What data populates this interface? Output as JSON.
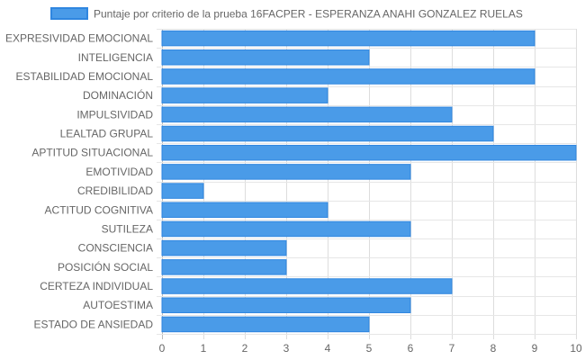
{
  "chart_data": {
    "type": "bar",
    "orientation": "horizontal",
    "title": "",
    "xlabel": "",
    "ylabel": "",
    "categories": [
      "EXPRESIVIDAD EMOCIONAL",
      "INTELIGENCIA",
      "ESTABILIDAD EMOCIONAL",
      "DOMINACIÓN",
      "IMPULSIVIDAD",
      "LEALTAD GRUPAL",
      "APTITUD SITUACIONAL",
      "EMOTIVIDAD",
      "CREDIBILIDAD",
      "ACTITUD COGNITIVA",
      "SUTILEZA",
      "CONSCIENCIA",
      "POSICIÓN SOCIAL",
      "CERTEZA INDIVIDUAL",
      "AUTOESTIMA",
      "ESTADO DE ANSIEDAD"
    ],
    "series": [
      {
        "name": "Puntaje por criterio de la prueba 16FACPER - ESPERANZA ANAHI GONZALEZ RUELAS",
        "values": [
          9,
          5,
          9,
          4,
          7,
          8,
          10,
          6,
          1,
          4,
          6,
          3,
          3,
          7,
          6,
          5
        ],
        "color": "#4a9be8",
        "border_color": "#2f86e0"
      }
    ],
    "xlim": [
      0,
      10
    ],
    "xticks": [
      "0",
      "1",
      "2",
      "3",
      "4",
      "5",
      "6",
      "7",
      "8",
      "9",
      "10"
    ],
    "grid": true,
    "legend_position": "top"
  }
}
